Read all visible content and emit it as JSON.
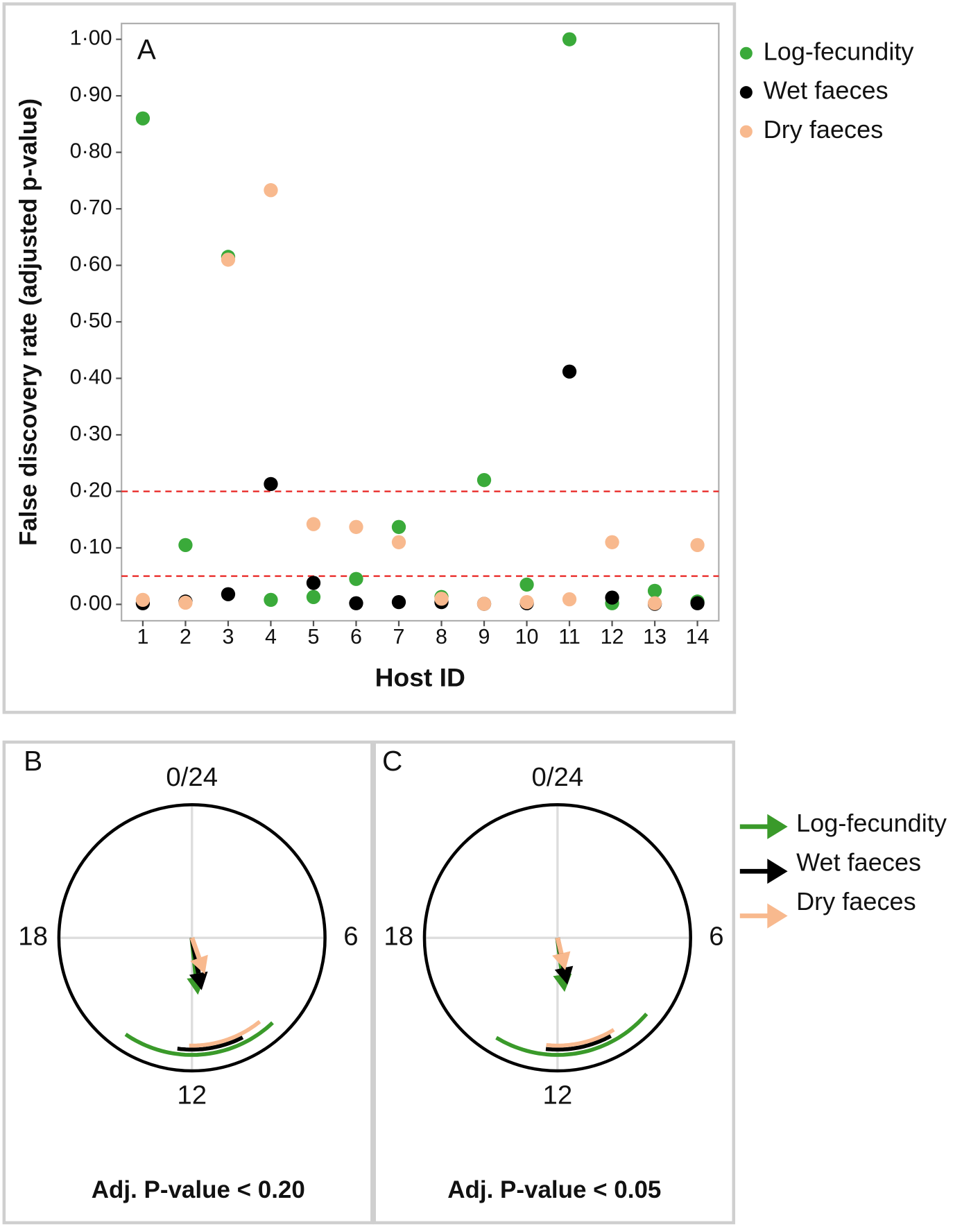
{
  "chart_data": [
    {
      "type": "scatter",
      "panel": "A",
      "x_label": "Host ID",
      "y_label": "False discovery rate (adjusted p-value)",
      "x": [
        1,
        2,
        3,
        4,
        5,
        6,
        7,
        8,
        9,
        10,
        11,
        12,
        13,
        14
      ],
      "series": [
        {
          "name": "Log-fecundity",
          "color": "#3aaa3a",
          "values": [
            0.86,
            0.105,
            0.615,
            0.008,
            0.013,
            0.045,
            0.137,
            0.013,
            0.22,
            0.035,
            1.0,
            0.002,
            0.024,
            0.005
          ]
        },
        {
          "name": "Wet faeces",
          "color": "#000000",
          "values": [
            0.002,
            0.005,
            0.018,
            0.213,
            0.038,
            0.002,
            0.004,
            0.004,
            0.001,
            0.002,
            0.412,
            0.012,
            0.001,
            0.002
          ]
        },
        {
          "name": "Dry faeces",
          "color": "#f8b98e",
          "values": [
            0.008,
            0.003,
            0.61,
            0.733,
            0.142,
            0.137,
            0.11,
            0.01,
            0.001,
            0.004,
            0.009,
            0.11,
            0.002,
            0.105
          ]
        }
      ],
      "hlines": [
        0.2,
        0.05
      ],
      "hline_color": "#e8201e",
      "xlim": [
        0.5,
        14.5
      ],
      "ylim": [
        -0.029,
        1.028
      ],
      "xticks": [
        1,
        2,
        3,
        4,
        5,
        6,
        7,
        8,
        9,
        10,
        11,
        12,
        13,
        14
      ],
      "yticks": [
        {
          "value": 0,
          "label": "0·00"
        },
        {
          "value": 0.1,
          "label": "0·10"
        },
        {
          "value": 0.2,
          "label": "0·20"
        },
        {
          "value": 0.3,
          "label": "0·30"
        },
        {
          "value": 0.4,
          "label": "0·40"
        },
        {
          "value": 0.5,
          "label": "0·50"
        },
        {
          "value": 0.6,
          "label": "0·60"
        },
        {
          "value": 0.7,
          "label": "0·70"
        },
        {
          "value": 0.8,
          "label": "0·80"
        },
        {
          "value": 0.9,
          "label": "0·90"
        },
        {
          "value": 1,
          "label": "1·00"
        }
      ],
      "legend": "right"
    },
    {
      "type": "circular",
      "panel": "B",
      "title": "Adj. P-value < 0.20",
      "angle_ticks": [
        {
          "value": 0,
          "label": "0/24"
        },
        6,
        12,
        18
      ],
      "period": 24,
      "series": [
        {
          "color": "#3a9a2a",
          "phase": 11.6,
          "amplitude": 0.43,
          "arc": [
            14.3,
            9.1
          ],
          "arc_radius": 0.88
        },
        {
          "color": "#000000",
          "phase": 11.3,
          "amplitude": 0.4,
          "arc": [
            12.5,
            10.2
          ],
          "arc_radius": 0.84
        },
        {
          "color": "#f8b98e",
          "phase": 10.7,
          "amplitude": 0.29,
          "arc": [
            12.1,
            9.4
          ],
          "arc_radius": 0.81
        }
      ]
    },
    {
      "type": "circular",
      "panel": "C",
      "title": "Adj. P-value < 0.05",
      "angle_ticks": [
        {
          "value": 0,
          "label": "0/24"
        },
        6,
        12,
        18
      ],
      "period": 24,
      "series": [
        {
          "name": "Log-fecundity",
          "color": "#3a9a2a",
          "phase": 11.5,
          "amplitude": 0.41,
          "arc": [
            14.1,
            8.7
          ],
          "arc_radius": 0.88
        },
        {
          "name": "Wet faeces",
          "color": "#000000",
          "phase": 11.2,
          "amplitude": 0.36,
          "arc": [
            12.4,
            10.1
          ],
          "arc_radius": 0.84
        },
        {
          "name": "Dry faeces",
          "color": "#f8b98e",
          "phase": 11.1,
          "amplitude": 0.25,
          "arc": [
            12.4,
            9.9
          ],
          "arc_radius": 0.81
        }
      ],
      "legend": "right"
    }
  ]
}
